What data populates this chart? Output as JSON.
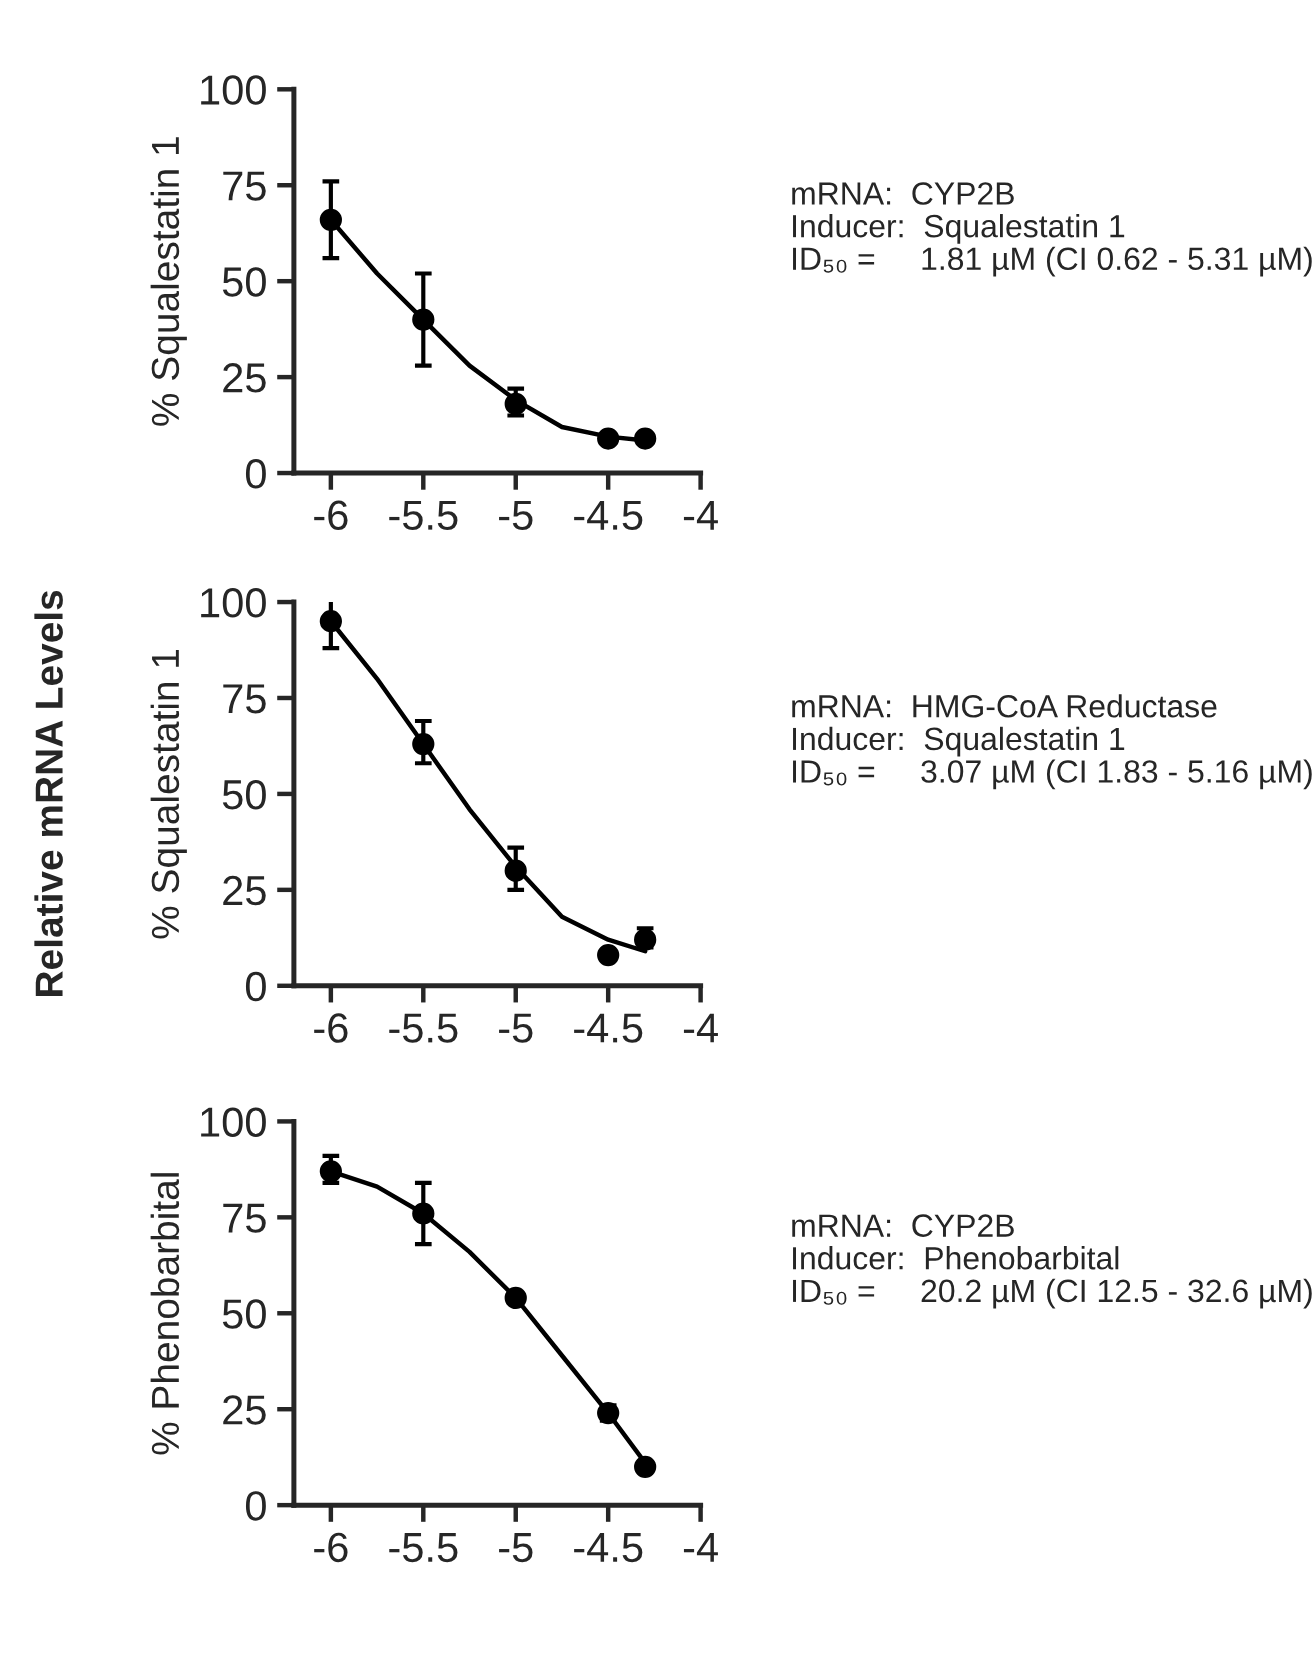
{
  "chart_data": [
    {
      "type": "scatter",
      "ylabel": "% Squalestatin 1",
      "xlim": [
        -6.2,
        -4
      ],
      "xticks": [
        -6,
        -5.5,
        -5,
        -4.5,
        -4
      ],
      "ylim": [
        0,
        100
      ],
      "yticks": [
        0,
        25,
        50,
        75,
        100
      ],
      "marker": "circle",
      "grid": false,
      "legend": false,
      "annotations": [
        "mRNA:  CYP2B",
        "Inducer:  Squalestatin 1",
        "ID₅₀ =     1.81 µM (CI 0.62 - 5.31 µM)"
      ],
      "series": [
        {
          "color": "#000000",
          "x": [
            -6,
            -5.5,
            -5,
            -4.5,
            -4.3
          ],
          "values": [
            66,
            40,
            18,
            9,
            9
          ],
          "errors": [
            [
              56,
              76
            ],
            [
              28,
              52
            ],
            [
              15,
              22
            ],
            null,
            null
          ]
        },
        {
          "type": "line",
          "color": "#000000",
          "marker": "none",
          "x": [
            -6,
            -5.75,
            -5.5,
            -5.25,
            -5,
            -4.75,
            -4.5,
            -4.3
          ],
          "values": [
            66,
            52,
            40,
            28,
            19,
            12,
            9.5,
            8.5
          ]
        }
      ]
    },
    {
      "type": "scatter",
      "ylabel": "% Squalestatin 1",
      "xlim": [
        -6.2,
        -4
      ],
      "xticks": [
        -6,
        -5.5,
        -5,
        -4.5,
        -4
      ],
      "ylim": [
        0,
        100
      ],
      "yticks": [
        0,
        25,
        50,
        75,
        100
      ],
      "marker": "circle",
      "grid": false,
      "legend": false,
      "annotations": [
        "mRNA:  HMG-CoA Reductase",
        "Inducer:  Squalestatin 1",
        "ID₅₀ =     3.07 µM (CI 1.83 - 5.16 µM)",
        "Relative mRNA Levels"
      ],
      "series": [
        {
          "color": "#000000",
          "x": [
            -6,
            -5.5,
            -5,
            -4.5,
            -4.3
          ],
          "values": [
            95,
            63,
            30,
            8,
            12
          ],
          "errors": [
            [
              88,
              101
            ],
            [
              58,
              69
            ],
            [
              25,
              36
            ],
            null,
            [
              10,
              15
            ]
          ]
        },
        {
          "type": "line",
          "color": "#000000",
          "marker": "none",
          "x": [
            -6,
            -5.75,
            -5.5,
            -5.25,
            -5,
            -4.75,
            -4.5,
            -4.3
          ],
          "values": [
            95,
            80,
            63,
            46,
            31,
            18,
            12,
            9
          ]
        }
      ]
    },
    {
      "type": "scatter",
      "ylabel": "% Phenobarbital",
      "xlim": [
        -6.2,
        -4
      ],
      "xticks": [
        -6,
        -5.5,
        -5,
        -4.5,
        -4
      ],
      "ylim": [
        0,
        100
      ],
      "yticks": [
        0,
        25,
        50,
        75,
        100
      ],
      "marker": "circle",
      "grid": false,
      "legend": false,
      "annotations": [
        "mRNA:  CYP2B",
        "Inducer:  Phenobarbital",
        "ID₅₀ =     20.2 µM (CI 12.5 - 32.6 µM)"
      ],
      "series": [
        {
          "color": "#000000",
          "x": [
            -6,
            -5.5,
            -5,
            -4.5,
            -4.3
          ],
          "values": [
            87,
            76,
            54,
            24,
            10
          ],
          "errors": [
            [
              84,
              91
            ],
            [
              68,
              84
            ],
            null,
            [
              22,
              26
            ],
            null
          ]
        },
        {
          "type": "line",
          "color": "#000000",
          "marker": "none",
          "x": [
            -6,
            -5.75,
            -5.5,
            -5.25,
            -5,
            -4.75,
            -4.5,
            -4.3
          ],
          "values": [
            87,
            83,
            76,
            66,
            54,
            39,
            24,
            11
          ]
        }
      ]
    }
  ]
}
